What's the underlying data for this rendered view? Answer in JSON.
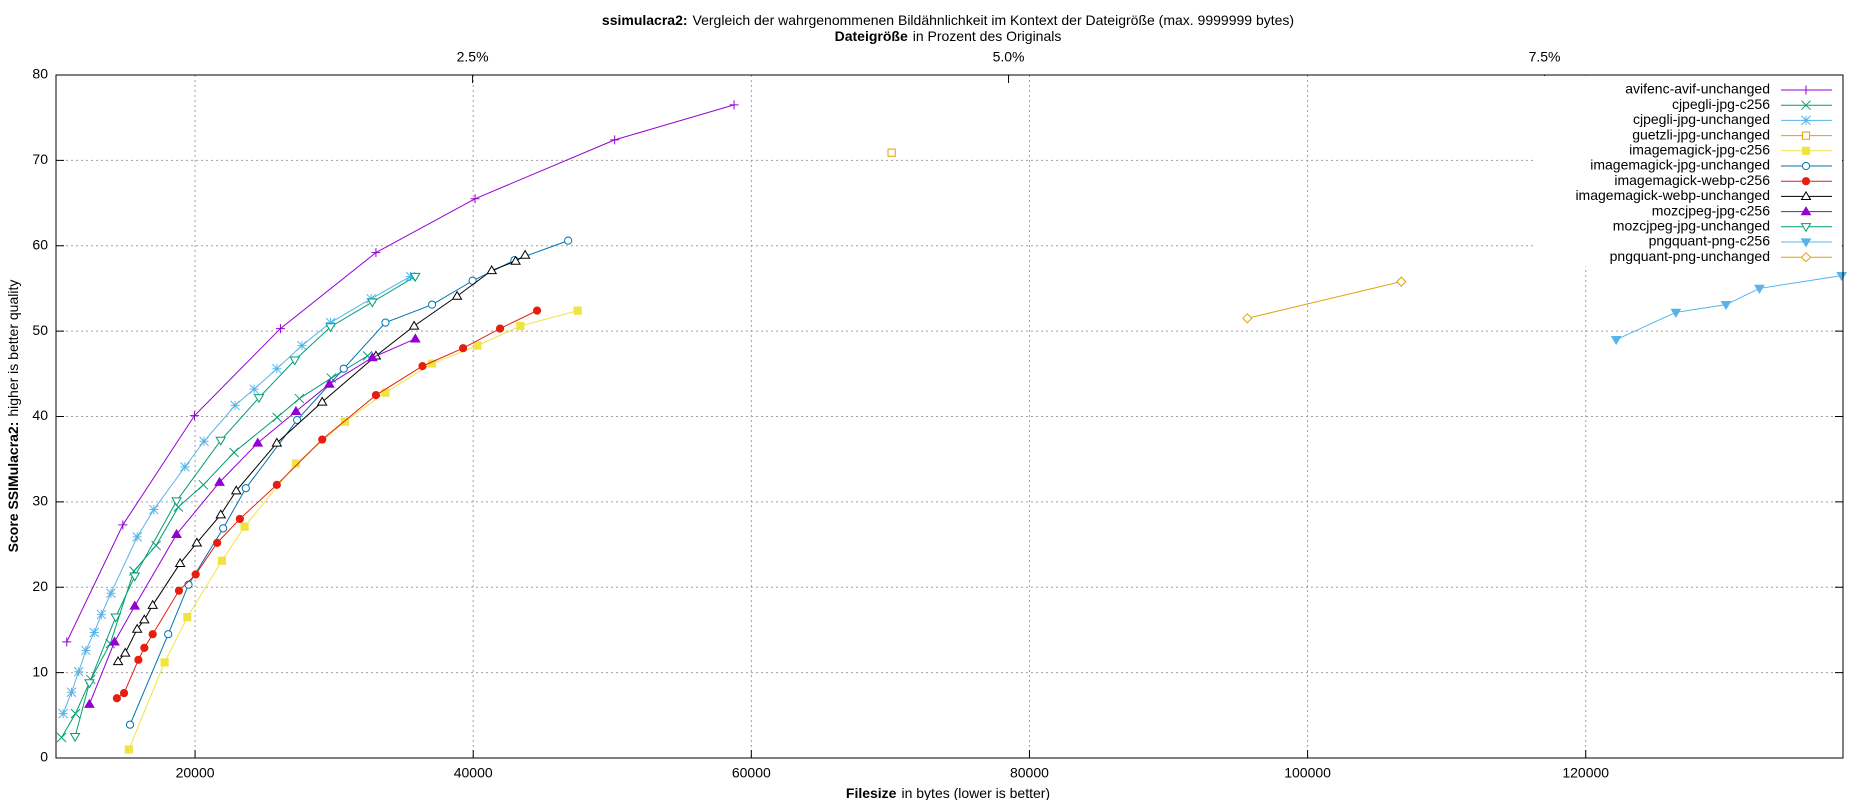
{
  "chart_data": {
    "type": "line",
    "title": {
      "bold": "ssimulacra2:",
      "text": "Vergleich der wahrgenommenen Bildähnlichkeit im Kontext der Dateigröße (max. 9999999 bytes)"
    },
    "x2label": {
      "bold": "Dateigröße",
      "text": "in Prozent des Originals"
    },
    "xlabel": {
      "bold": "Filesize",
      "text": "in bytes (lower is better)"
    },
    "ylabel": {
      "bold": "Score SSIMulacra2:",
      "text": "higher is better quality"
    },
    "xlim": [
      10000,
      138500
    ],
    "xticks": [
      20000,
      40000,
      60000,
      80000,
      100000,
      120000
    ],
    "x2lim": [
      0.557,
      8.892
    ],
    "x2ticks": [
      {
        "value": 2.5,
        "label": "2.5%"
      },
      {
        "value": 5.0,
        "label": "5.0%"
      },
      {
        "value": 7.5,
        "label": "7.5%"
      }
    ],
    "ylim": [
      0,
      80
    ],
    "yticks": [
      0,
      10,
      20,
      30,
      40,
      50,
      60,
      70,
      80
    ],
    "grid": true,
    "legend": "top-right",
    "series": [
      {
        "name": "avifenc-avif-unchanged",
        "color": "#9400d3",
        "marker": "plus",
        "x": [
          10773,
          14807,
          19957,
          26138,
          33006,
          40131,
          50174,
          58758
        ],
        "values": [
          13.6,
          27.3,
          40.1,
          50.3,
          59.2,
          65.5,
          72.4,
          76.5
        ]
      },
      {
        "name": "cjpegli-jpg-c256",
        "color": "#009e73",
        "marker": "cross",
        "x": [
          10400,
          11400,
          12500,
          13900,
          15600,
          17200,
          18800,
          20600,
          22800,
          25900,
          27500,
          29800,
          32400
        ],
        "values": [
          2.4,
          5.2,
          9.2,
          13.4,
          21.9,
          24.9,
          29.4,
          32.0,
          35.8,
          39.9,
          42.1,
          44.5,
          47.1
        ]
      },
      {
        "name": "cjpegli-jpg-unchanged",
        "color": "#56b4e9",
        "marker": "star",
        "x": [
          10515,
          11116,
          11631,
          12146,
          12747,
          13262,
          13949,
          15837,
          17039,
          19271,
          20644,
          22876,
          24250,
          25880,
          27683,
          29743,
          32661,
          35494
        ],
        "values": [
          5.2,
          7.7,
          10.1,
          12.6,
          14.7,
          16.8,
          19.3,
          25.9,
          29.1,
          34.1,
          37.1,
          41.3,
          43.2,
          45.6,
          48.3,
          51.0,
          53.8,
          56.4
        ]
      },
      {
        "name": "guetzli-jpg-unchanged",
        "color": "#e69f00",
        "marker": "square",
        "x": [
          70088
        ],
        "values": [
          70.9
        ]
      },
      {
        "name": "imagemagick-jpg-c256",
        "color": "#f0e442",
        "marker": "square-filled",
        "x": [
          15236,
          17811,
          19442,
          21932,
          23562,
          27254,
          30773,
          33692,
          37040,
          40301,
          43392,
          47512
        ],
        "values": [
          1.0,
          11.2,
          16.5,
          23.1,
          27.1,
          34.5,
          39.4,
          42.8,
          46.2,
          48.3,
          50.6,
          52.4
        ]
      },
      {
        "name": "imagemagick-jpg-unchanged",
        "color": "#0072b2",
        "marker": "circle",
        "x": [
          15322,
          18069,
          19528,
          22018,
          23649,
          27340,
          30687,
          33692,
          37040,
          39958,
          42963,
          46826
        ],
        "values": [
          3.9,
          14.5,
          20.3,
          26.9,
          31.6,
          39.6,
          45.6,
          51.0,
          53.1,
          55.9,
          58.3,
          60.6
        ]
      },
      {
        "name": "imagemagick-webp-c256",
        "color": "#e51e10",
        "marker": "circle-filled",
        "x": [
          14378,
          14893,
          15923,
          16352,
          16953,
          18842,
          20043,
          21588,
          23219,
          25880,
          29142,
          33006,
          36353,
          39272,
          41933,
          44594
        ],
        "values": [
          7.0,
          7.6,
          11.5,
          12.9,
          14.5,
          19.6,
          21.5,
          25.2,
          28.0,
          32.0,
          37.3,
          42.5,
          45.9,
          48.0,
          50.3,
          52.4
        ]
      },
      {
        "name": "imagemagick-webp-unchanged",
        "color": "#000000",
        "marker": "triangle",
        "x": [
          14464,
          14979,
          15837,
          16352,
          16953,
          18927,
          20129,
          21846,
          22962,
          25880,
          29142,
          33006,
          35752,
          38842,
          41332,
          43049,
          43735
        ],
        "values": [
          11.3,
          12.3,
          15.1,
          16.2,
          17.9,
          22.8,
          25.2,
          28.5,
          31.3,
          36.9,
          41.7,
          47.1,
          50.6,
          54.1,
          57.1,
          58.2,
          58.9
        ]
      },
      {
        "name": "mozcjpeg-jpg-c256",
        "color": "#9400d3",
        "marker": "triangle-filled",
        "x": [
          12403,
          14206,
          15665,
          18670,
          21760,
          24507,
          27254,
          29657,
          32747,
          35837
        ],
        "values": [
          6.3,
          13.6,
          17.8,
          26.2,
          32.3,
          36.9,
          40.6,
          43.8,
          46.9,
          49.1
        ]
      },
      {
        "name": "mozcjpeg-jpg-unchanged",
        "color": "#009e73",
        "marker": "triangle-down",
        "x": [
          11373,
          12403,
          14292,
          15665,
          18670,
          21846,
          24593,
          27168,
          29743,
          32747,
          35837
        ],
        "values": [
          2.5,
          8.8,
          16.5,
          21.3,
          30.1,
          37.2,
          42.2,
          46.6,
          50.5,
          53.4,
          56.4
        ]
      },
      {
        "name": "pngquant-png-c256",
        "color": "#56b4e9",
        "marker": "triangle-down-filled",
        "x": [
          122189,
          126481,
          130087,
          132490,
          138400
        ],
        "values": [
          49.0,
          52.2,
          53.1,
          55.0,
          56.5
        ]
      },
      {
        "name": "pngquant-png-unchanged",
        "color": "#e69f00",
        "marker": "diamond",
        "x": [
          95666,
          106739
        ],
        "values": [
          51.5,
          55.8
        ]
      }
    ]
  }
}
